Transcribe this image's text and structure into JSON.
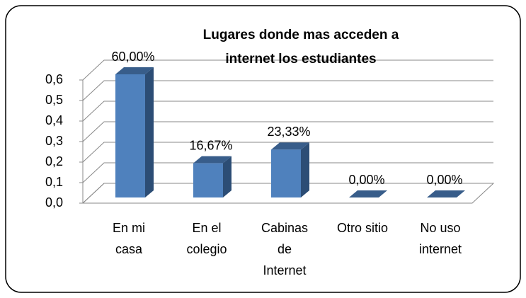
{
  "chart_data": {
    "type": "bar3d",
    "title": "Lugares donde mas acceden a internet los estudiantes",
    "categories": [
      "En mi casa",
      "En el colegio",
      "Cabinas de Internet",
      "Otro sitio",
      "No uso internet"
    ],
    "values": [
      0.6,
      0.1667,
      0.2333,
      0,
      0
    ],
    "value_labels": [
      "60,00%",
      "16,67%",
      "23,33%",
      "0,00%",
      "0,00%"
    ],
    "color": "#4f81bd",
    "ylim": [
      0,
      0.6
    ],
    "yticks": [
      {
        "value": 0,
        "label": "0,0"
      },
      {
        "value": 0.1,
        "label": "0,1"
      },
      {
        "value": 0.2,
        "label": "0,2"
      },
      {
        "value": 0.3,
        "label": "0,3"
      },
      {
        "value": 0.4,
        "label": "0,4"
      },
      {
        "value": 0.5,
        "label": "0,5"
      },
      {
        "value": 0.6,
        "label": "0,6"
      }
    ],
    "grid": true
  }
}
